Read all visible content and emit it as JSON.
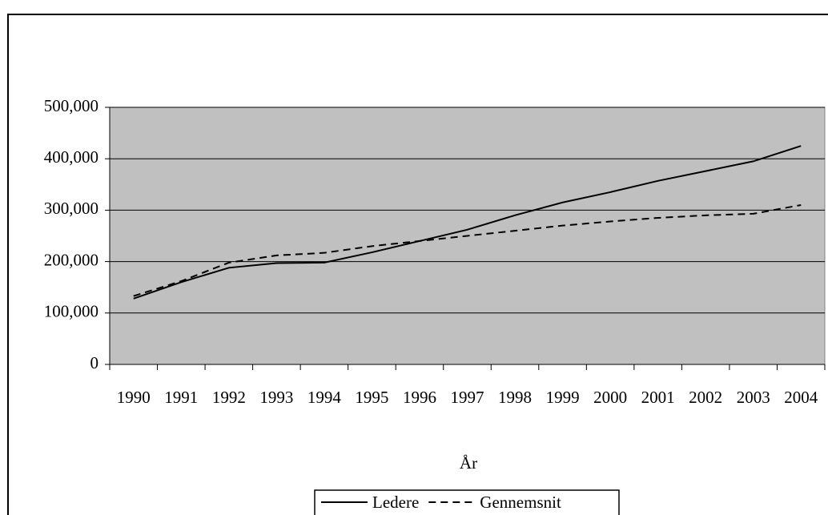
{
  "chart_data": {
    "type": "line",
    "x_label": "År",
    "categories": [
      "1990",
      "1991",
      "1992",
      "1993",
      "1994",
      "1995",
      "1996",
      "1997",
      "1998",
      "1999",
      "2000",
      "2001",
      "2002",
      "2003",
      "2004"
    ],
    "series": [
      {
        "name": "Ledere",
        "color": "#000000",
        "dash": "none",
        "values": [
          128000,
          160000,
          188000,
          197000,
          198000,
          218000,
          240000,
          262000,
          290000,
          315000,
          335000,
          357000,
          376000,
          395000,
          425000
        ]
      },
      {
        "name": "Gennemsnit",
        "color": "#000000",
        "dash": "9,6",
        "values": [
          133000,
          162000,
          198000,
          212000,
          217000,
          230000,
          240000,
          250000,
          260000,
          270000,
          278000,
          285000,
          290000,
          293000,
          310000
        ]
      }
    ],
    "ylim": [
      0,
      500000
    ],
    "yticks": [
      0,
      {
        "value": 100000,
        "label": "100,000"
      },
      {
        "value": 200000,
        "label": "200,000"
      },
      {
        "value": 300000,
        "label": "300,000"
      },
      {
        "value": 400000,
        "label": "400,000"
      },
      {
        "value": 500000,
        "label": "500,000"
      }
    ],
    "grid": true,
    "legend": "bottom",
    "plot_background": "#c0c0c0"
  }
}
